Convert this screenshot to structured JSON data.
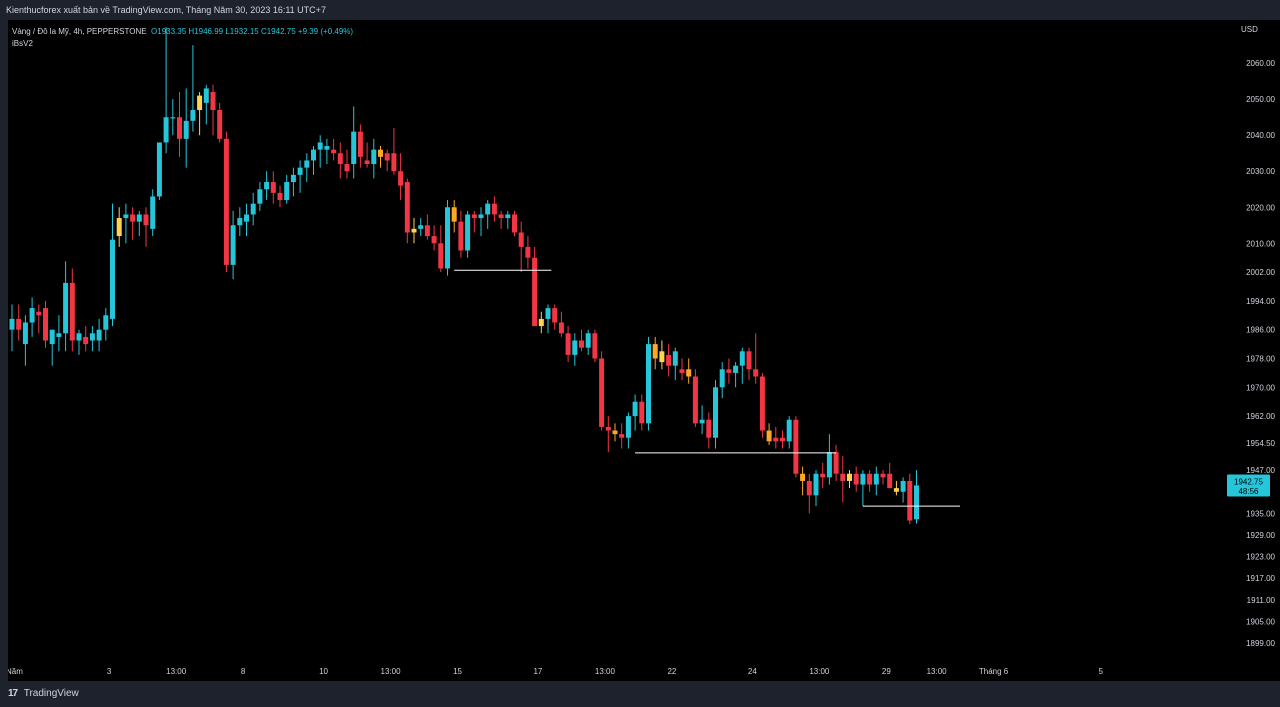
{
  "header": {
    "title": "Kienthucforex xuất bản về TradingView.com, Tháng Năm 30, 2023 16:11 UTC+7"
  },
  "legend": {
    "symbol": "Vàng / Đô la Mỹ, 4h, PEPPERSTONE",
    "open": "O1933.35",
    "high": "H1946.99",
    "low": "L1932.15",
    "close": "C1942.75",
    "change": "+9.39 (+0.49%)",
    "indicator": "iBsV2"
  },
  "currency": "USD",
  "last_price": {
    "price": "1942.75",
    "countdown": "48:56"
  },
  "footer": {
    "brand": "TradingView"
  },
  "colors": {
    "up": "#26c6da",
    "down": "#f23645",
    "inside_up": "#ffa726",
    "inside_down": "#ffd54f",
    "background": "#000000",
    "lines": "#ffffff"
  },
  "chart_data": {
    "type": "candlestick",
    "symbol": "XAUUSD",
    "timeframe": "4h",
    "ylim": [
      1894,
      2072
    ],
    "yticks": [
      "2060.00",
      "2050.00",
      "2040.00",
      "2030.00",
      "2020.00",
      "2010.00",
      "2002.00",
      "1994.00",
      "1986.00",
      "1978.00",
      "1970.00",
      "1962.00",
      "1954.50",
      "1947.00",
      "1935.00",
      "1929.00",
      "1923.00",
      "1917.00",
      "1911.00",
      "1905.00",
      "1899.00"
    ],
    "xticks": [
      {
        "label": "Tháng Năm",
        "index": -1.5
      },
      {
        "label": "3",
        "index": 14.5
      },
      {
        "label": "13:00",
        "index": 24.5
      },
      {
        "label": "8",
        "index": 34.5
      },
      {
        "label": "10",
        "index": 46.5
      },
      {
        "label": "13:00",
        "index": 56.5
      },
      {
        "label": "15",
        "index": 66.5
      },
      {
        "label": "17",
        "index": 78.5
      },
      {
        "label": "13:00",
        "index": 88.5
      },
      {
        "label": "22",
        "index": 98.5
      },
      {
        "label": "24",
        "index": 110.5
      },
      {
        "label": "13:00",
        "index": 120.5
      },
      {
        "label": "29",
        "index": 130.5
      },
      {
        "label": "13:00",
        "index": 138
      },
      {
        "label": "Tháng 6",
        "index": 146.5
      },
      {
        "label": "5",
        "index": 162.5
      }
    ],
    "candles": [
      {
        "o": 1986,
        "h": 1993,
        "l": 1980,
        "c": 1989
      },
      {
        "o": 1989,
        "h": 1993,
        "l": 1983,
        "c": 1986
      },
      {
        "o": 1982,
        "h": 1990,
        "l": 1976,
        "c": 1988
      },
      {
        "o": 1988,
        "h": 1995,
        "l": 1984,
        "c": 1992
      },
      {
        "o": 1991,
        "h": 1993,
        "l": 1985,
        "c": 1990
      },
      {
        "o": 1992,
        "h": 1994,
        "l": 1981,
        "c": 1983
      },
      {
        "o": 1982,
        "h": 1986,
        "l": 1976,
        "c": 1986
      },
      {
        "o": 1984,
        "h": 1990,
        "l": 1980,
        "c": 1985
      },
      {
        "o": 1985,
        "h": 2005,
        "l": 1980,
        "c": 1999
      },
      {
        "o": 1999,
        "h": 2003,
        "l": 1980,
        "c": 1983
      },
      {
        "o": 1983,
        "h": 1986,
        "l": 1979,
        "c": 1985
      },
      {
        "o": 1984,
        "h": 1987,
        "l": 1980,
        "c": 1982
      },
      {
        "o": 1983,
        "h": 1987,
        "l": 1980,
        "c": 1985
      },
      {
        "o": 1983,
        "h": 1989,
        "l": 1980,
        "c": 1986
      },
      {
        "o": 1986,
        "h": 1992,
        "l": 1983,
        "c": 1990
      },
      {
        "o": 1989,
        "h": 2021,
        "l": 1987,
        "c": 2011
      },
      {
        "o": 2012,
        "h": 2020,
        "l": 2009,
        "c": 2017,
        "color": "#ffd54f"
      },
      {
        "o": 2017,
        "h": 2021,
        "l": 2010,
        "c": 2018
      },
      {
        "o": 2018,
        "h": 2020,
        "l": 2011,
        "c": 2016
      },
      {
        "o": 2016,
        "h": 2019,
        "l": 2012,
        "c": 2018
      },
      {
        "o": 2018,
        "h": 2020,
        "l": 2009,
        "c": 2015
      },
      {
        "o": 2014,
        "h": 2025,
        "l": 2012,
        "c": 2023
      },
      {
        "o": 2023,
        "h": 2037,
        "l": 2022,
        "c": 2038
      },
      {
        "o": 2038,
        "h": 2070,
        "l": 2035,
        "c": 2045
      },
      {
        "o": 2045,
        "h": 2050,
        "l": 2040,
        "c": 2045
      },
      {
        "o": 2045,
        "h": 2052,
        "l": 2034,
        "c": 2039
      },
      {
        "o": 2039,
        "h": 2053,
        "l": 2031,
        "c": 2044
      },
      {
        "o": 2044,
        "h": 2065,
        "l": 2041,
        "c": 2047
      },
      {
        "o": 2047,
        "h": 2052,
        "l": 2040,
        "c": 2051,
        "color": "#ffd54f"
      },
      {
        "o": 2049,
        "h": 2054,
        "l": 2043,
        "c": 2053
      },
      {
        "o": 2052,
        "h": 2054,
        "l": 2040,
        "c": 2047
      },
      {
        "o": 2047,
        "h": 2049,
        "l": 2038,
        "c": 2039
      },
      {
        "o": 2039,
        "h": 2041,
        "l": 2002,
        "c": 2004
      },
      {
        "o": 2004,
        "h": 2019,
        "l": 2000,
        "c": 2015
      },
      {
        "o": 2015,
        "h": 2020,
        "l": 2012,
        "c": 2017
      },
      {
        "o": 2016,
        "h": 2021,
        "l": 2012,
        "c": 2018
      },
      {
        "o": 2018,
        "h": 2024,
        "l": 2015,
        "c": 2021
      },
      {
        "o": 2021,
        "h": 2027,
        "l": 2019,
        "c": 2025
      },
      {
        "o": 2025,
        "h": 2030,
        "l": 2022,
        "c": 2027
      },
      {
        "o": 2027,
        "h": 2030,
        "l": 2021,
        "c": 2024
      },
      {
        "o": 2024,
        "h": 2026,
        "l": 2020,
        "c": 2022
      },
      {
        "o": 2022,
        "h": 2029,
        "l": 2021,
        "c": 2027
      },
      {
        "o": 2027,
        "h": 2031,
        "l": 2023,
        "c": 2029
      },
      {
        "o": 2029,
        "h": 2033,
        "l": 2024,
        "c": 2031
      },
      {
        "o": 2031,
        "h": 2035,
        "l": 2027,
        "c": 2033
      },
      {
        "o": 2033,
        "h": 2037,
        "l": 2029,
        "c": 2036
      },
      {
        "o": 2036,
        "h": 2040,
        "l": 2031,
        "c": 2038
      },
      {
        "o": 2036,
        "h": 2039,
        "l": 2032,
        "c": 2037
      },
      {
        "o": 2036,
        "h": 2039,
        "l": 2033,
        "c": 2035
      },
      {
        "o": 2035,
        "h": 2038,
        "l": 2028,
        "c": 2032
      },
      {
        "o": 2032,
        "h": 2036,
        "l": 2028,
        "c": 2030
      },
      {
        "o": 2032,
        "h": 2048,
        "l": 2028,
        "c": 2041
      },
      {
        "o": 2041,
        "h": 2043,
        "l": 2031,
        "c": 2034
      },
      {
        "o": 2033,
        "h": 2038,
        "l": 2031,
        "c": 2032
      },
      {
        "o": 2032,
        "h": 2039,
        "l": 2028,
        "c": 2036
      },
      {
        "o": 2036,
        "h": 2037,
        "l": 2031,
        "c": 2034,
        "color": "#ffa726"
      },
      {
        "o": 2035,
        "h": 2036,
        "l": 2030,
        "c": 2033
      },
      {
        "o": 2035,
        "h": 2042,
        "l": 2029,
        "c": 2030
      },
      {
        "o": 2030,
        "h": 2035,
        "l": 2022,
        "c": 2026
      },
      {
        "o": 2027,
        "h": 2028,
        "l": 2010,
        "c": 2013
      },
      {
        "o": 2013,
        "h": 2017,
        "l": 2010,
        "c": 2014,
        "color": "#ffd54f"
      },
      {
        "o": 2014,
        "h": 2017,
        "l": 2012,
        "c": 2015
      },
      {
        "o": 2015,
        "h": 2018,
        "l": 2011,
        "c": 2012
      },
      {
        "o": 2012,
        "h": 2015,
        "l": 2008,
        "c": 2010
      },
      {
        "o": 2010,
        "h": 2015,
        "l": 2002,
        "c": 2003
      },
      {
        "o": 2003,
        "h": 2022,
        "l": 2001,
        "c": 2020
      },
      {
        "o": 2020,
        "h": 2022,
        "l": 2013,
        "c": 2016,
        "color": "#ffa726"
      },
      {
        "o": 2016,
        "h": 2019,
        "l": 2006,
        "c": 2008
      },
      {
        "o": 2008,
        "h": 2019,
        "l": 2006,
        "c": 2018
      },
      {
        "o": 2018,
        "h": 2019,
        "l": 2013,
        "c": 2017
      },
      {
        "o": 2017,
        "h": 2020,
        "l": 2012,
        "c": 2018
      },
      {
        "o": 2018,
        "h": 2022,
        "l": 2014,
        "c": 2021
      },
      {
        "o": 2021,
        "h": 2023,
        "l": 2016,
        "c": 2018
      },
      {
        "o": 2018,
        "h": 2019,
        "l": 2014,
        "c": 2017
      },
      {
        "o": 2017,
        "h": 2019,
        "l": 2014,
        "c": 2018
      },
      {
        "o": 2018,
        "h": 2019,
        "l": 2012,
        "c": 2013
      },
      {
        "o": 2013,
        "h": 2016,
        "l": 2002,
        "c": 2009
      },
      {
        "o": 2009,
        "h": 2012,
        "l": 2003,
        "c": 2006
      },
      {
        "o": 2006,
        "h": 2009,
        "l": 1987,
        "c": 1987
      },
      {
        "o": 1987,
        "h": 1991,
        "l": 1985,
        "c": 1989,
        "color": "#ffd54f"
      },
      {
        "o": 1989,
        "h": 1993,
        "l": 1985,
        "c": 1992
      },
      {
        "o": 1992,
        "h": 1993,
        "l": 1986,
        "c": 1988
      },
      {
        "o": 1988,
        "h": 1991,
        "l": 1984,
        "c": 1985
      },
      {
        "o": 1985,
        "h": 1987,
        "l": 1977,
        "c": 1979
      },
      {
        "o": 1979,
        "h": 1985,
        "l": 1976,
        "c": 1983
      },
      {
        "o": 1983,
        "h": 1986,
        "l": 1980,
        "c": 1981
      },
      {
        "o": 1981,
        "h": 1986,
        "l": 1979,
        "c": 1985
      },
      {
        "o": 1985,
        "h": 1986,
        "l": 1977,
        "c": 1978
      },
      {
        "o": 1978,
        "h": 1980,
        "l": 1958,
        "c": 1959
      },
      {
        "o": 1959,
        "h": 1962,
        "l": 1952,
        "c": 1958
      },
      {
        "o": 1958,
        "h": 1960,
        "l": 1955,
        "c": 1957,
        "color": "#ffa726"
      },
      {
        "o": 1957,
        "h": 1960,
        "l": 1953,
        "c": 1956
      },
      {
        "o": 1956,
        "h": 1963,
        "l": 1953,
        "c": 1962
      },
      {
        "o": 1962,
        "h": 1968,
        "l": 1958,
        "c": 1966
      },
      {
        "o": 1966,
        "h": 1968,
        "l": 1958,
        "c": 1960
      },
      {
        "o": 1960,
        "h": 1984,
        "l": 1958,
        "c": 1982
      },
      {
        "o": 1982,
        "h": 1984,
        "l": 1975,
        "c": 1978,
        "color": "#ffa726"
      },
      {
        "o": 1980,
        "h": 1983,
        "l": 1975,
        "c": 1977,
        "color": "#ffd54f"
      },
      {
        "o": 1979,
        "h": 1982,
        "l": 1973,
        "c": 1976
      },
      {
        "o": 1976,
        "h": 1981,
        "l": 1972,
        "c": 1980
      },
      {
        "o": 1975,
        "h": 1978,
        "l": 1972,
        "c": 1974
      },
      {
        "o": 1975,
        "h": 1978,
        "l": 1971,
        "c": 1973,
        "color": "#ffa726"
      },
      {
        "o": 1973,
        "h": 1975,
        "l": 1959,
        "c": 1960
      },
      {
        "o": 1960,
        "h": 1965,
        "l": 1957,
        "c": 1961
      },
      {
        "o": 1961,
        "h": 1963,
        "l": 1953,
        "c": 1956
      },
      {
        "o": 1956,
        "h": 1972,
        "l": 1953,
        "c": 1970
      },
      {
        "o": 1970,
        "h": 1977,
        "l": 1967,
        "c": 1975
      },
      {
        "o": 1975,
        "h": 1978,
        "l": 1971,
        "c": 1974
      },
      {
        "o": 1974,
        "h": 1977,
        "l": 1970,
        "c": 1976
      },
      {
        "o": 1976,
        "h": 1981,
        "l": 1971,
        "c": 1980
      },
      {
        "o": 1980,
        "h": 1981,
        "l": 1972,
        "c": 1975
      },
      {
        "o": 1975,
        "h": 1985,
        "l": 1971,
        "c": 1973
      },
      {
        "o": 1973,
        "h": 1974,
        "l": 1956,
        "c": 1958
      },
      {
        "o": 1958,
        "h": 1960,
        "l": 1954,
        "c": 1955,
        "color": "#ffa726"
      },
      {
        "o": 1956,
        "h": 1959,
        "l": 1953,
        "c": 1955
      },
      {
        "o": 1956,
        "h": 1958,
        "l": 1953,
        "c": 1955
      },
      {
        "o": 1955,
        "h": 1962,
        "l": 1953,
        "c": 1961
      },
      {
        "o": 1961,
        "h": 1962,
        "l": 1945,
        "c": 1946
      },
      {
        "o": 1946,
        "h": 1948,
        "l": 1940,
        "c": 1944,
        "color": "#ffa726"
      },
      {
        "o": 1944,
        "h": 1946,
        "l": 1935,
        "c": 1940
      },
      {
        "o": 1940,
        "h": 1947,
        "l": 1937,
        "c": 1946
      },
      {
        "o": 1946,
        "h": 1949,
        "l": 1942,
        "c": 1945
      },
      {
        "o": 1945,
        "h": 1957,
        "l": 1943,
        "c": 1952
      },
      {
        "o": 1952,
        "h": 1954,
        "l": 1944,
        "c": 1946
      },
      {
        "o": 1946,
        "h": 1951,
        "l": 1938,
        "c": 1944
      },
      {
        "o": 1944,
        "h": 1947,
        "l": 1942,
        "c": 1946,
        "color": "#ffd54f"
      },
      {
        "o": 1946,
        "h": 1948,
        "l": 1941,
        "c": 1943
      },
      {
        "o": 1943,
        "h": 1947,
        "l": 1937,
        "c": 1946
      },
      {
        "o": 1946,
        "h": 1947,
        "l": 1941,
        "c": 1943
      },
      {
        "o": 1943,
        "h": 1948,
        "l": 1940,
        "c": 1946
      },
      {
        "o": 1946,
        "h": 1947,
        "l": 1943,
        "c": 1945
      },
      {
        "o": 1946,
        "h": 1949,
        "l": 1942,
        "c": 1942
      },
      {
        "o": 1942,
        "h": 1944,
        "l": 1940,
        "c": 1941,
        "color": "#ffd54f"
      },
      {
        "o": 1941,
        "h": 1945,
        "l": 1938,
        "c": 1944
      },
      {
        "o": 1944,
        "h": 1946,
        "l": 1932,
        "c": 1933
      },
      {
        "o": 1933.35,
        "h": 1946.99,
        "l": 1932.15,
        "c": 1942.75
      }
    ],
    "levels": [
      {
        "price": 2002.5,
        "from": 66,
        "to": 80.5
      },
      {
        "price": 1951.8,
        "from": 93,
        "to": 123
      },
      {
        "price": 1937.0,
        "from": 127,
        "to": 141.5
      }
    ]
  }
}
